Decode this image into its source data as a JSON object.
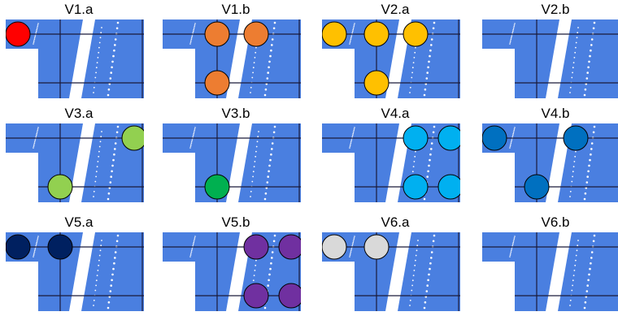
{
  "panels": [
    {
      "title": "V1.a",
      "markers": [
        {
          "pos": "top-left",
          "color": "#ff0000"
        }
      ]
    },
    {
      "title": "V1.b",
      "markers": [
        {
          "pos": "top-mid",
          "color": "#ed7d31"
        },
        {
          "pos": "top-right",
          "color": "#ed7d31"
        },
        {
          "pos": "bottom-mid",
          "color": "#ed7d31"
        }
      ]
    },
    {
      "title": "V2.a",
      "markers": [
        {
          "pos": "top-left",
          "color": "#ffc000"
        },
        {
          "pos": "top-mid",
          "color": "#ffc000"
        },
        {
          "pos": "top-right",
          "color": "#ffc000"
        },
        {
          "pos": "bottom-mid",
          "color": "#ffc000"
        }
      ]
    },
    {
      "title": "V2.b",
      "markers": []
    },
    {
      "title": "V3.a",
      "markers": [
        {
          "pos": "top-far-right",
          "color": "#92d050"
        },
        {
          "pos": "bottom-mid",
          "color": "#92d050"
        }
      ]
    },
    {
      "title": "V3.b",
      "markers": [
        {
          "pos": "bottom-mid",
          "color": "#00b050"
        }
      ]
    },
    {
      "title": "V4.a",
      "markers": [
        {
          "pos": "top-right",
          "color": "#00b0f0"
        },
        {
          "pos": "top-far-right",
          "color": "#00b0f0"
        },
        {
          "pos": "bottom-right",
          "color": "#00b0f0"
        },
        {
          "pos": "bottom-far-right",
          "color": "#00b0f0"
        }
      ]
    },
    {
      "title": "V4.b",
      "markers": [
        {
          "pos": "top-left",
          "color": "#0070c0"
        },
        {
          "pos": "top-right",
          "color": "#0070c0"
        },
        {
          "pos": "bottom-mid",
          "color": "#0070c0"
        }
      ]
    },
    {
      "title": "V5.a",
      "markers": [
        {
          "pos": "top-left",
          "color": "#002060"
        },
        {
          "pos": "top-mid",
          "color": "#002060"
        }
      ]
    },
    {
      "title": "V5.b",
      "markers": [
        {
          "pos": "top-right",
          "color": "#7030a0"
        },
        {
          "pos": "top-far-right",
          "color": "#7030a0"
        },
        {
          "pos": "bottom-right",
          "color": "#7030a0"
        },
        {
          "pos": "bottom-far-right",
          "color": "#7030a0"
        }
      ]
    },
    {
      "title": "V6.a",
      "markers": [
        {
          "pos": "top-left",
          "color": "#d9d9d9"
        },
        {
          "pos": "top-mid",
          "color": "#d9d9d9"
        }
      ]
    },
    {
      "title": "V6.b",
      "markers": []
    }
  ],
  "colors": {
    "background": "#4a7fe0",
    "grid": "#1a1a3a",
    "lane": "#ffffff",
    "cutout": "#ffffff",
    "marker_stroke": "#000000"
  }
}
